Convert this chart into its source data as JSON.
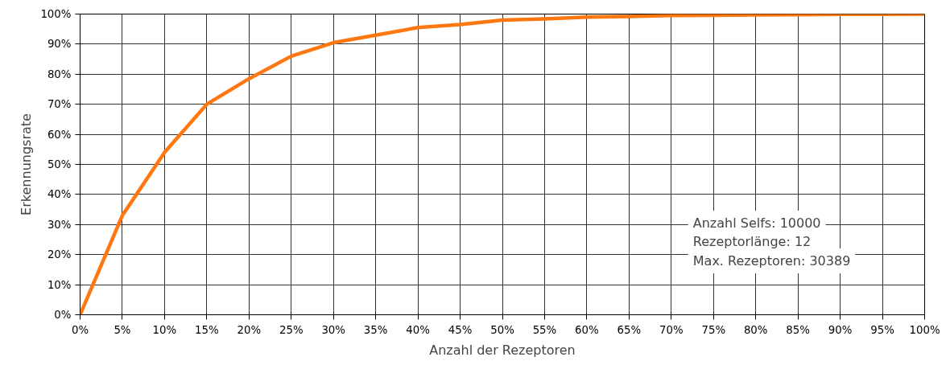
{
  "chart_data": {
    "type": "line",
    "xlabel": "Anzahl der Rezeptoren",
    "ylabel": "Erkennungsrate",
    "x": [
      0,
      5,
      10,
      15,
      20,
      25,
      30,
      35,
      40,
      45,
      50,
      55,
      60,
      65,
      70,
      75,
      80,
      85,
      90,
      95,
      100
    ],
    "series": [
      {
        "color": "#ff7710",
        "values": [
          0,
          33,
          54,
          70,
          78.5,
          86,
          90.5,
          93,
          95.5,
          96.5,
          98,
          98.4,
          99,
          99.2,
          99.5,
          99.6,
          99.7,
          99.8,
          99.9,
          99.9,
          100
        ]
      }
    ],
    "xlim": [
      0,
      100
    ],
    "ylim": [
      0,
      100
    ],
    "xticks": [
      {
        "value": 0,
        "label": "0%"
      },
      {
        "value": 5,
        "label": "5%"
      },
      {
        "value": 10,
        "label": "10%"
      },
      {
        "value": 15,
        "label": "15%"
      },
      {
        "value": 20,
        "label": "20%"
      },
      {
        "value": 25,
        "label": "25%"
      },
      {
        "value": 30,
        "label": "30%"
      },
      {
        "value": 35,
        "label": "35%"
      },
      {
        "value": 40,
        "label": "40%"
      },
      {
        "value": 45,
        "label": "45%"
      },
      {
        "value": 50,
        "label": "50%"
      },
      {
        "value": 55,
        "label": "55%"
      },
      {
        "value": 60,
        "label": "60%"
      },
      {
        "value": 65,
        "label": "65%"
      },
      {
        "value": 70,
        "label": "70%"
      },
      {
        "value": 75,
        "label": "75%"
      },
      {
        "value": 80,
        "label": "80%"
      },
      {
        "value": 85,
        "label": "85%"
      },
      {
        "value": 90,
        "label": "90%"
      },
      {
        "value": 95,
        "label": "95%"
      },
      {
        "value": 100,
        "label": "100%"
      }
    ],
    "yticks": [
      {
        "value": 0,
        "label": "0%"
      },
      {
        "value": 10,
        "label": "10%"
      },
      {
        "value": 20,
        "label": "20%"
      },
      {
        "value": 30,
        "label": "30%"
      },
      {
        "value": 40,
        "label": "40%"
      },
      {
        "value": 50,
        "label": "50%"
      },
      {
        "value": 60,
        "label": "60%"
      },
      {
        "value": 70,
        "label": "70%"
      },
      {
        "value": 80,
        "label": "80%"
      },
      {
        "value": 90,
        "label": "90%"
      },
      {
        "value": 100,
        "label": "100%"
      }
    ],
    "annotations": [
      "Anzahl Selfs: 10000",
      "Rezeptorlänge: 12",
      "Max. Rezeptoren: 30389"
    ],
    "grid": true,
    "marker": "none",
    "line_style": "solid"
  }
}
